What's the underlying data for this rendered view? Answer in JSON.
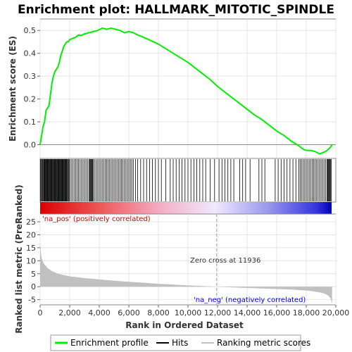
{
  "chart_data": {
    "type": "line",
    "title": "Enrichment plot: HALLMARK_MITOTIC_SPINDLE",
    "es_panel": {
      "ylabel": "Enrichment score (ES)",
      "ylim": [
        -0.06,
        0.55
      ],
      "yticks": [
        0.0,
        0.1,
        0.2,
        0.3,
        0.4,
        0.5
      ],
      "ytick_labels": [
        "0.0",
        "0.1",
        "0.2",
        "0.3",
        "0.4",
        "0.5"
      ],
      "line_color": "#00ee00",
      "curve": {
        "x": [
          0,
          100,
          200,
          300,
          400,
          500,
          600,
          700,
          800,
          900,
          1000,
          1100,
          1200,
          1300,
          1400,
          1500,
          1600,
          1700,
          1800,
          1900,
          2000,
          2200,
          2400,
          2600,
          2800,
          3000,
          3300,
          3600,
          3900,
          4200,
          4500,
          4800,
          5100,
          5400,
          5700,
          6000,
          6300,
          6600,
          7000,
          7500,
          8000,
          8500,
          9000,
          9500,
          10000,
          10500,
          11000,
          11500,
          12000,
          12500,
          13000,
          13500,
          14000,
          14500,
          15000,
          15500,
          16000,
          16500,
          17000,
          17500,
          17800,
          18000,
          18300,
          18600,
          18900,
          19100,
          19300,
          19500,
          19650,
          19750
        ],
        "y": [
          0.0,
          0.04,
          0.08,
          0.1,
          0.15,
          0.16,
          0.17,
          0.22,
          0.27,
          0.3,
          0.32,
          0.33,
          0.34,
          0.36,
          0.39,
          0.41,
          0.43,
          0.44,
          0.45,
          0.45,
          0.46,
          0.465,
          0.47,
          0.48,
          0.478,
          0.485,
          0.49,
          0.495,
          0.5,
          0.51,
          0.505,
          0.51,
          0.505,
          0.5,
          0.49,
          0.495,
          0.49,
          0.48,
          0.47,
          0.455,
          0.44,
          0.42,
          0.4,
          0.38,
          0.36,
          0.335,
          0.31,
          0.285,
          0.255,
          0.23,
          0.205,
          0.18,
          0.155,
          0.13,
          0.11,
          0.085,
          0.06,
          0.04,
          0.015,
          -0.005,
          -0.02,
          -0.025,
          -0.025,
          -0.03,
          -0.04,
          -0.035,
          -0.03,
          -0.02,
          -0.01,
          0.0
        ]
      }
    },
    "hits_panel": {
      "label": "Hits",
      "hit_positions": [
        20,
        60,
        110,
        160,
        200,
        250,
        290,
        330,
        370,
        410,
        450,
        480,
        520,
        560,
        600,
        640,
        680,
        720,
        760,
        800,
        840,
        880,
        920,
        960,
        1000,
        1040,
        1080,
        1120,
        1160,
        1200,
        1240,
        1280,
        1320,
        1360,
        1400,
        1440,
        1480,
        1520,
        1560,
        1600,
        1640,
        1680,
        1720,
        1760,
        1800,
        1850,
        1900,
        1950,
        2000,
        2100,
        2200,
        2300,
        2400,
        2500,
        2600,
        2700,
        2800,
        2900,
        3000,
        3100,
        3200,
        3300,
        3350,
        3400,
        3450,
        3500,
        3550,
        3600,
        3700,
        3800,
        3900,
        4000,
        4100,
        4200,
        4300,
        4400,
        4500,
        4600,
        4700,
        4800,
        4900,
        5000,
        5100,
        5200,
        5300,
        5400,
        5500,
        5600,
        5700,
        5800,
        5900,
        6000,
        6100,
        6200,
        6300,
        6450,
        6600,
        6800,
        7000,
        7200,
        7400,
        7600,
        7800,
        8000,
        8200,
        8500,
        8800,
        9000,
        9200,
        9400,
        9600,
        9800,
        10000,
        10200,
        10400,
        10600,
        10800,
        11000,
        11200,
        11500,
        11800,
        12100,
        12300,
        12500,
        12700,
        12900,
        13100,
        13500,
        13700,
        13900,
        14200,
        14800,
        15000,
        15200,
        15900,
        16100,
        16300,
        16500,
        16700,
        16900,
        17100,
        17300,
        17500,
        17600,
        17700,
        17800,
        17900,
        18000,
        18100,
        18200,
        18300,
        18400,
        18500,
        18600,
        18700,
        18800,
        18900,
        19000,
        19100,
        19200,
        19300,
        19400,
        19450,
        19500,
        19550,
        19600,
        19650,
        19700
      ]
    },
    "rank_panel": {
      "ylabel": "Ranked list metric (PreRanked)",
      "xlabel": "Rank in Ordered Dataset",
      "ylim": [
        -7,
        28
      ],
      "yticks": [
        -5,
        0,
        5,
        10,
        15,
        20,
        25
      ],
      "ytick_labels": [
        "-5",
        "0",
        "5",
        "10",
        "15",
        "20",
        "25"
      ],
      "fill_color": "#c0c0c0",
      "metric": {
        "x": [
          0,
          50,
          100,
          200,
          300,
          500,
          800,
          1200,
          2000,
          3000,
          4000,
          5000,
          6000,
          7000,
          8000,
          9000,
          10000,
          11000,
          11936,
          13000,
          14000,
          15000,
          16000,
          17000,
          18000,
          18500,
          19000,
          19300,
          19500,
          19650,
          19750
        ],
        "y": [
          17,
          13,
          11,
          9.5,
          8.5,
          7.2,
          6.0,
          5.0,
          4.0,
          3.3,
          2.8,
          2.3,
          1.9,
          1.5,
          1.1,
          0.8,
          0.5,
          0.25,
          0.0,
          -0.3,
          -0.5,
          -0.7,
          -0.9,
          -1.1,
          -1.5,
          -1.8,
          -2.3,
          -2.8,
          -3.5,
          -4.5,
          -6.5
        ]
      }
    },
    "xlim": [
      0,
      20000
    ],
    "xticks": [
      0,
      2000,
      4000,
      6000,
      8000,
      10000,
      12000,
      14000,
      16000,
      18000,
      20000
    ],
    "xtick_labels": [
      "0",
      "2,000",
      "4,000",
      "6,000",
      "8,000",
      "10,000",
      "12,000",
      "14,000",
      "16,000",
      "18,000",
      "20,000"
    ],
    "n_genes": 19750,
    "zero_cross": 11936,
    "annotations": {
      "pos_label": "'na_pos' (positively correlated)",
      "neg_label": "'na_neg' (negatively correlated)",
      "zero_cross_label": "Zero cross at 11936",
      "pos_color": "#dd0000",
      "neg_color": "#0000dd"
    },
    "legend": {
      "placement": "bottom",
      "entries": [
        {
          "label": "Enrichment profile",
          "color": "#00ee00"
        },
        {
          "label": "Hits",
          "color": "#000000"
        },
        {
          "label": "Ranking metric scores",
          "color": "#c0c0c0"
        }
      ]
    }
  }
}
